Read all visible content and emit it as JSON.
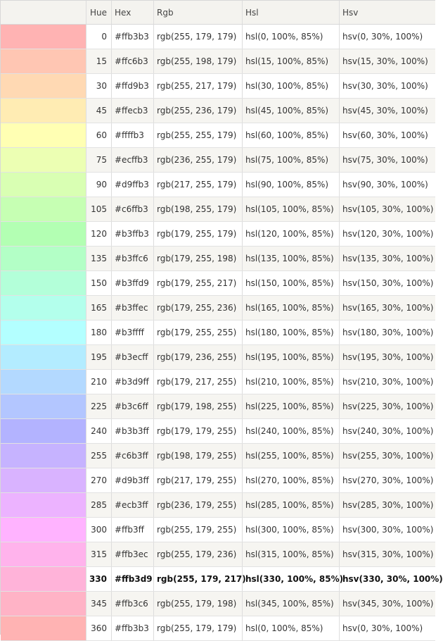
{
  "columns": [
    "",
    "Hue",
    "Hex",
    "Rgb",
    "Hsl",
    "Hsv"
  ],
  "selected_hue": 330,
  "rows": [
    {
      "hue": "0",
      "hex": "#ffb3b3",
      "rgb": "rgb(255, 179, 179)",
      "hsl": "hsl(0, 100%, 85%)",
      "hsv": "hsv(0, 30%, 100%)",
      "color": "#ffb3b3"
    },
    {
      "hue": "15",
      "hex": "#ffc6b3",
      "rgb": "rgb(255, 198, 179)",
      "hsl": "hsl(15, 100%, 85%)",
      "hsv": "hsv(15, 30%, 100%)",
      "color": "#ffc6b3"
    },
    {
      "hue": "30",
      "hex": "#ffd9b3",
      "rgb": "rgb(255, 217, 179)",
      "hsl": "hsl(30, 100%, 85%)",
      "hsv": "hsv(30, 30%, 100%)",
      "color": "#ffd9b3"
    },
    {
      "hue": "45",
      "hex": "#ffecb3",
      "rgb": "rgb(255, 236, 179)",
      "hsl": "hsl(45, 100%, 85%)",
      "hsv": "hsv(45, 30%, 100%)",
      "color": "#ffecb3"
    },
    {
      "hue": "60",
      "hex": "#ffffb3",
      "rgb": "rgb(255, 255, 179)",
      "hsl": "hsl(60, 100%, 85%)",
      "hsv": "hsv(60, 30%, 100%)",
      "color": "#ffffb3"
    },
    {
      "hue": "75",
      "hex": "#ecffb3",
      "rgb": "rgb(236, 255, 179)",
      "hsl": "hsl(75, 100%, 85%)",
      "hsv": "hsv(75, 30%, 100%)",
      "color": "#ecffb3"
    },
    {
      "hue": "90",
      "hex": "#d9ffb3",
      "rgb": "rgb(217, 255, 179)",
      "hsl": "hsl(90, 100%, 85%)",
      "hsv": "hsv(90, 30%, 100%)",
      "color": "#d9ffb3"
    },
    {
      "hue": "105",
      "hex": "#c6ffb3",
      "rgb": "rgb(198, 255, 179)",
      "hsl": "hsl(105, 100%, 85%)",
      "hsv": "hsv(105, 30%, 100%)",
      "color": "#c6ffb3"
    },
    {
      "hue": "120",
      "hex": "#b3ffb3",
      "rgb": "rgb(179, 255, 179)",
      "hsl": "hsl(120, 100%, 85%)",
      "hsv": "hsv(120, 30%, 100%)",
      "color": "#b3ffb3"
    },
    {
      "hue": "135",
      "hex": "#b3ffc6",
      "rgb": "rgb(179, 255, 198)",
      "hsl": "hsl(135, 100%, 85%)",
      "hsv": "hsv(135, 30%, 100%)",
      "color": "#b3ffc6"
    },
    {
      "hue": "150",
      "hex": "#b3ffd9",
      "rgb": "rgb(179, 255, 217)",
      "hsl": "hsl(150, 100%, 85%)",
      "hsv": "hsv(150, 30%, 100%)",
      "color": "#b3ffd9"
    },
    {
      "hue": "165",
      "hex": "#b3ffec",
      "rgb": "rgb(179, 255, 236)",
      "hsl": "hsl(165, 100%, 85%)",
      "hsv": "hsv(165, 30%, 100%)",
      "color": "#b3ffec"
    },
    {
      "hue": "180",
      "hex": "#b3ffff",
      "rgb": "rgb(179, 255, 255)",
      "hsl": "hsl(180, 100%, 85%)",
      "hsv": "hsv(180, 30%, 100%)",
      "color": "#b3ffff"
    },
    {
      "hue": "195",
      "hex": "#b3ecff",
      "rgb": "rgb(179, 236, 255)",
      "hsl": "hsl(195, 100%, 85%)",
      "hsv": "hsv(195, 30%, 100%)",
      "color": "#b3ecff"
    },
    {
      "hue": "210",
      "hex": "#b3d9ff",
      "rgb": "rgb(179, 217, 255)",
      "hsl": "hsl(210, 100%, 85%)",
      "hsv": "hsv(210, 30%, 100%)",
      "color": "#b3d9ff"
    },
    {
      "hue": "225",
      "hex": "#b3c6ff",
      "rgb": "rgb(179, 198, 255)",
      "hsl": "hsl(225, 100%, 85%)",
      "hsv": "hsv(225, 30%, 100%)",
      "color": "#b3c6ff"
    },
    {
      "hue": "240",
      "hex": "#b3b3ff",
      "rgb": "rgb(179, 179, 255)",
      "hsl": "hsl(240, 100%, 85%)",
      "hsv": "hsv(240, 30%, 100%)",
      "color": "#b3b3ff"
    },
    {
      "hue": "255",
      "hex": "#c6b3ff",
      "rgb": "rgb(198, 179, 255)",
      "hsl": "hsl(255, 100%, 85%)",
      "hsv": "hsv(255, 30%, 100%)",
      "color": "#c6b3ff"
    },
    {
      "hue": "270",
      "hex": "#d9b3ff",
      "rgb": "rgb(217, 179, 255)",
      "hsl": "hsl(270, 100%, 85%)",
      "hsv": "hsv(270, 30%, 100%)",
      "color": "#d9b3ff"
    },
    {
      "hue": "285",
      "hex": "#ecb3ff",
      "rgb": "rgb(236, 179, 255)",
      "hsl": "hsl(285, 100%, 85%)",
      "hsv": "hsv(285, 30%, 100%)",
      "color": "#ecb3ff"
    },
    {
      "hue": "300",
      "hex": "#ffb3ff",
      "rgb": "rgb(255, 179, 255)",
      "hsl": "hsl(300, 100%, 85%)",
      "hsv": "hsv(300, 30%, 100%)",
      "color": "#ffb3ff"
    },
    {
      "hue": "315",
      "hex": "#ffb3ec",
      "rgb": "rgb(255, 179, 236)",
      "hsl": "hsl(315, 100%, 85%)",
      "hsv": "hsv(315, 30%, 100%)",
      "color": "#ffb3ec"
    },
    {
      "hue": "330",
      "hex": "#ffb3d9",
      "rgb": "rgb(255, 179, 217)",
      "hsl": "hsl(330, 100%, 85%)",
      "hsv": "hsv(330, 30%, 100%)",
      "color": "#ffb3d9"
    },
    {
      "hue": "345",
      "hex": "#ffb3c6",
      "rgb": "rgb(255, 179, 198)",
      "hsl": "hsl(345, 100%, 85%)",
      "hsv": "hsv(345, 30%, 100%)",
      "color": "#ffb3c6"
    },
    {
      "hue": "360",
      "hex": "#ffb3b3",
      "rgb": "rgb(255, 179, 179)",
      "hsl": "hsl(0, 100%, 85%)",
      "hsv": "hsv(0, 30%, 100%)",
      "color": "#ffb3b3"
    }
  ]
}
